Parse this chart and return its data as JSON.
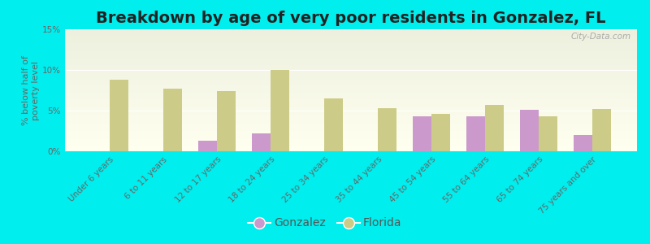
{
  "title": "Breakdown by age of very poor residents in Gonzalez, FL",
  "ylabel": "% below half of\npoverty level",
  "categories": [
    "Under 6 years",
    "6 to 11 years",
    "12 to 17 years",
    "18 to 24 years",
    "25 to 34 years",
    "35 to 44 years",
    "45 to 54 years",
    "55 to 64 years",
    "65 to 74 years",
    "75 years and over"
  ],
  "gonzalez_values": [
    0,
    0,
    1.3,
    2.2,
    0,
    0,
    4.3,
    4.3,
    5.1,
    2.0
  ],
  "florida_values": [
    8.8,
    7.7,
    7.4,
    10.0,
    6.5,
    5.3,
    4.6,
    5.7,
    4.3,
    5.2
  ],
  "gonzalez_color": "#cc99cc",
  "florida_color": "#cccc88",
  "background_outer": "#00eeee",
  "ylim": [
    0,
    15
  ],
  "yticks": [
    0,
    5,
    10,
    15
  ],
  "ytick_labels": [
    "0%",
    "5%",
    "10%",
    "15%"
  ],
  "title_fontsize": 14,
  "axis_label_fontsize": 8,
  "tick_fontsize": 7.5,
  "legend_fontsize": 10,
  "bar_width": 0.35,
  "watermark": "City-Data.com"
}
